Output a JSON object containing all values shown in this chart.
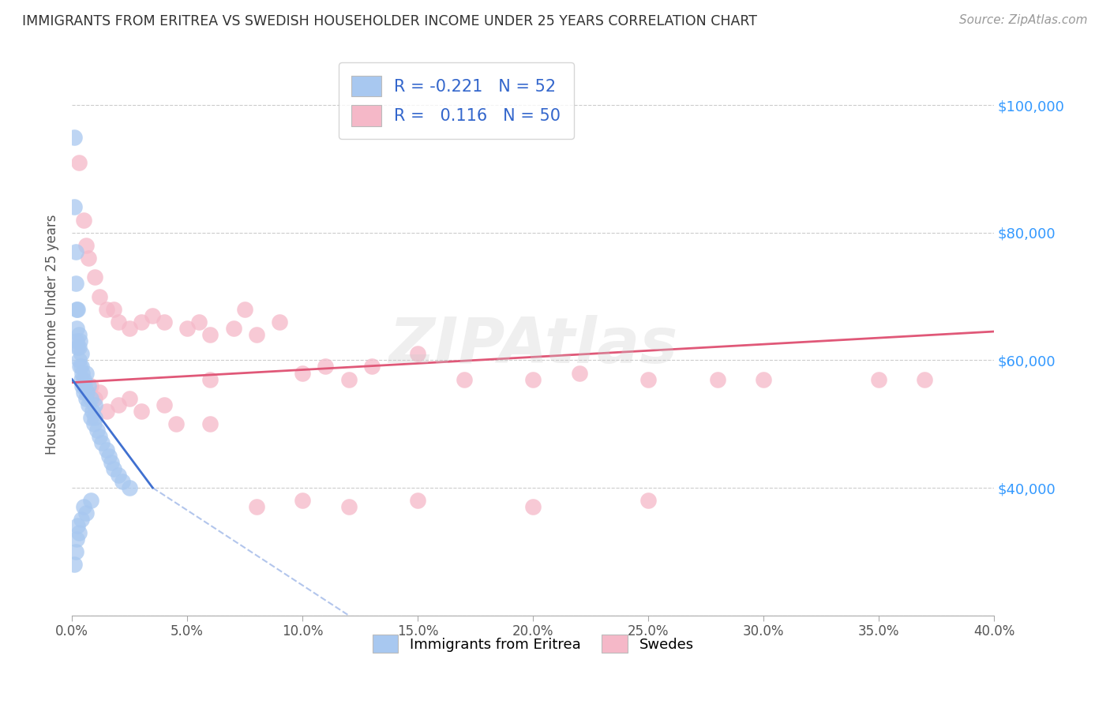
{
  "title": "IMMIGRANTS FROM ERITREA VS SWEDISH HOUSEHOLDER INCOME UNDER 25 YEARS CORRELATION CHART",
  "source": "Source: ZipAtlas.com",
  "ylabel": "Householder Income Under 25 years",
  "xlabel_vals": [
    0.0,
    5.0,
    10.0,
    15.0,
    20.0,
    25.0,
    30.0,
    35.0,
    40.0
  ],
  "ytick_vals": [
    20000,
    40000,
    60000,
    80000,
    100000
  ],
  "xlim": [
    0.0,
    40.0
  ],
  "ylim": [
    20000,
    108000
  ],
  "legend1_r": "-0.221",
  "legend1_n": "52",
  "legend2_r": "0.116",
  "legend2_n": "50",
  "blue_color": "#a8c8f0",
  "pink_color": "#f5b8c8",
  "blue_line_color": "#4070d0",
  "pink_line_color": "#e05878",
  "watermark": "ZIPAtlas",
  "blue_scatter_x": [
    0.1,
    0.1,
    0.15,
    0.15,
    0.2,
    0.2,
    0.2,
    0.25,
    0.25,
    0.3,
    0.3,
    0.3,
    0.35,
    0.35,
    0.4,
    0.4,
    0.4,
    0.45,
    0.45,
    0.5,
    0.5,
    0.55,
    0.6,
    0.6,
    0.65,
    0.7,
    0.7,
    0.8,
    0.8,
    0.9,
    0.95,
    1.0,
    1.0,
    1.1,
    1.2,
    1.3,
    1.5,
    1.6,
    1.7,
    1.8,
    2.0,
    2.2,
    2.5,
    0.1,
    0.15,
    0.2,
    0.25,
    0.3,
    0.4,
    0.5,
    0.6,
    0.8
  ],
  "blue_scatter_y": [
    95000,
    84000,
    77000,
    72000,
    68000,
    65000,
    63000,
    62000,
    68000,
    64000,
    62000,
    60000,
    59000,
    63000,
    59000,
    61000,
    57000,
    58000,
    56000,
    57000,
    55000,
    56000,
    54000,
    58000,
    55000,
    53000,
    56000,
    54000,
    51000,
    52000,
    50000,
    51000,
    53000,
    49000,
    48000,
    47000,
    46000,
    45000,
    44000,
    43000,
    42000,
    41000,
    40000,
    28000,
    30000,
    32000,
    34000,
    33000,
    35000,
    37000,
    36000,
    38000
  ],
  "pink_scatter_x": [
    0.3,
    0.5,
    0.6,
    0.7,
    1.0,
    1.2,
    1.5,
    1.8,
    2.0,
    2.5,
    3.0,
    3.5,
    4.0,
    5.0,
    5.5,
    6.0,
    7.0,
    7.5,
    8.0,
    9.0,
    10.0,
    11.0,
    12.0,
    13.0,
    15.0,
    17.0,
    20.0,
    22.0,
    25.0,
    28.0,
    30.0,
    35.0,
    37.0,
    1.0,
    1.5,
    2.0,
    3.0,
    4.5,
    6.0,
    8.0,
    10.0,
    12.0,
    15.0,
    20.0,
    25.0,
    0.8,
    1.2,
    2.5,
    4.0,
    6.0
  ],
  "pink_scatter_y": [
    91000,
    82000,
    78000,
    76000,
    73000,
    70000,
    68000,
    68000,
    66000,
    65000,
    66000,
    67000,
    66000,
    65000,
    66000,
    64000,
    65000,
    68000,
    64000,
    66000,
    58000,
    59000,
    57000,
    59000,
    61000,
    57000,
    57000,
    58000,
    57000,
    57000,
    57000,
    57000,
    57000,
    54000,
    52000,
    53000,
    52000,
    50000,
    50000,
    37000,
    38000,
    37000,
    38000,
    37000,
    38000,
    56000,
    55000,
    54000,
    53000,
    57000
  ],
  "blue_trend_x0": 0.0,
  "blue_trend_x1": 3.5,
  "blue_trend_y0": 57000,
  "blue_trend_y1": 40000,
  "blue_dash_x0": 3.5,
  "blue_dash_x1": 12.0,
  "blue_dash_y0": 40000,
  "blue_dash_y1": 20000,
  "pink_trend_x0": 0.0,
  "pink_trend_x1": 40.0,
  "pink_trend_y0": 56500,
  "pink_trend_y1": 64500
}
